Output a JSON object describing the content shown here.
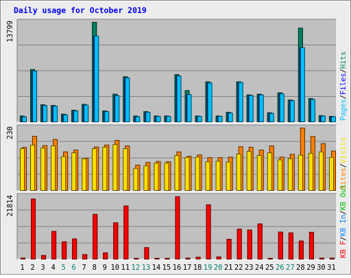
{
  "title": "Daily usage for October 2019",
  "colors": {
    "background": "#ececec",
    "plot_bg": "#c0c0c0",
    "title": "#0000ee",
    "pages": "#00c0ff",
    "files": "#0000ff",
    "hits": "#007f5f",
    "visits": "#ffe000",
    "sites": "#ff8000",
    "kb_f": "#ff0000",
    "kb_in": "#0080ff",
    "kb_out": "#00c000",
    "weekend": "#00806f",
    "axis_text": "#000000"
  },
  "chart_data": [
    {
      "type": "bar",
      "title": "Daily usage for October 2019",
      "panel": "top",
      "y_max_label": "13799",
      "ylim": [
        0,
        13799
      ],
      "grid": true,
      "legend": [
        {
          "text": "Pages",
          "color_key": "pages"
        },
        {
          "text": "/",
          "color_key": "axis_text"
        },
        {
          "text": "Files",
          "color_key": "files"
        },
        {
          "text": "/",
          "color_key": "axis_text"
        },
        {
          "text": "Hits",
          "color_key": "hits"
        }
      ],
      "categories": [
        "1",
        "2",
        "3",
        "4",
        "5",
        "6",
        "7",
        "8",
        "9",
        "10",
        "11",
        "12",
        "13",
        "14",
        "15",
        "16",
        "17",
        "18",
        "19",
        "20",
        "21",
        "22",
        "23",
        "24",
        "25",
        "26",
        "27",
        "28",
        "29",
        "30",
        "31"
      ],
      "series": [
        {
          "name": "Hits",
          "color_key": "hits",
          "values": [
            900,
            7300,
            2450,
            2350,
            1150,
            1700,
            2500,
            13799,
            1600,
            3900,
            6300,
            900,
            1500,
            900,
            900,
            6600,
            4400,
            900,
            5600,
            900,
            1400,
            5600,
            3800,
            3900,
            1350,
            4100,
            3100,
            13000,
            3300,
            950,
            850
          ]
        },
        {
          "name": "Files",
          "color_key": "files",
          "values": [
            800,
            7100,
            2350,
            2250,
            1050,
            1600,
            2400,
            11900,
            1500,
            3700,
            6150,
            800,
            1400,
            850,
            850,
            6400,
            3850,
            850,
            5450,
            850,
            1300,
            5500,
            3700,
            3800,
            1250,
            3950,
            3000,
            10300,
            3150,
            900,
            800
          ]
        },
        {
          "name": "Pages",
          "color_key": "pages",
          "values": [
            800,
            7100,
            2350,
            2250,
            1050,
            1600,
            2400,
            11900,
            1500,
            3700,
            6150,
            800,
            1400,
            850,
            850,
            6400,
            3850,
            850,
            5450,
            850,
            1300,
            5500,
            3700,
            3800,
            1250,
            3950,
            3000,
            10300,
            3150,
            900,
            800
          ]
        }
      ]
    },
    {
      "type": "bar",
      "panel": "middle",
      "y_max_label": "230",
      "ylim": [
        0,
        230
      ],
      "grid": true,
      "legend": [
        {
          "text": "Sites",
          "color_key": "sites"
        },
        {
          "text": "/",
          "color_key": "axis_text"
        },
        {
          "text": "Visits",
          "color_key": "visits"
        }
      ],
      "categories": [
        "1",
        "2",
        "3",
        "4",
        "5",
        "6",
        "7",
        "8",
        "9",
        "10",
        "11",
        "12",
        "13",
        "14",
        "15",
        "16",
        "17",
        "18",
        "19",
        "20",
        "21",
        "22",
        "23",
        "24",
        "25",
        "26",
        "27",
        "28",
        "29",
        "30",
        "31"
      ],
      "series": [
        {
          "name": "Visits",
          "color_key": "visits",
          "values": [
            155,
            168,
            157,
            165,
            126,
            140,
            118,
            155,
            160,
            170,
            155,
            83,
            92,
            102,
            102,
            130,
            123,
            124,
            107,
            109,
            106,
            135,
            145,
            130,
            140,
            114,
            118,
            131,
            138,
            143,
            123
          ]
        },
        {
          "name": "Sites",
          "color_key": "sites",
          "values": [
            159,
            200,
            166,
            188,
            143,
            150,
            120,
            161,
            168,
            185,
            165,
            95,
            105,
            108,
            107,
            143,
            127,
            132,
            122,
            122,
            124,
            162,
            160,
            150,
            165,
            124,
            134,
            230,
            199,
            173,
            146
          ]
        }
      ]
    },
    {
      "type": "bar",
      "panel": "bottom",
      "y_max_label": "21814",
      "ylim": [
        0,
        21814
      ],
      "grid": true,
      "legend": [
        {
          "text": "KB F",
          "color_key": "kb_f"
        },
        {
          "text": "/",
          "color_key": "axis_text"
        },
        {
          "text": "KB In",
          "color_key": "kb_in"
        },
        {
          "text": "/",
          "color_key": "axis_text"
        },
        {
          "text": "KB Out",
          "color_key": "kb_out"
        }
      ],
      "categories": [
        "1",
        "2",
        "3",
        "4",
        "5",
        "6",
        "7",
        "8",
        "9",
        "10",
        "11",
        "12",
        "13",
        "14",
        "15",
        "16",
        "17",
        "18",
        "19",
        "20",
        "21",
        "22",
        "23",
        "24",
        "25",
        "26",
        "27",
        "28",
        "29",
        "30",
        "31"
      ],
      "series": [
        {
          "name": "KB F",
          "color_key": "kb_f",
          "values": [
            600,
            21000,
            1500,
            9800,
            6200,
            7200,
            1800,
            15700,
            2400,
            12800,
            18600,
            500,
            4200,
            500,
            500,
            21814,
            600,
            900,
            19000,
            1000,
            7100,
            10600,
            10300,
            12400,
            500,
            9600,
            9300,
            6500,
            9500,
            600,
            600
          ]
        }
      ],
      "weekend_days": [
        "5",
        "6",
        "12",
        "13",
        "19",
        "20",
        "26",
        "27"
      ],
      "x_labels": [
        "1",
        "2",
        "3",
        "4",
        "5",
        "6",
        "7",
        "8",
        "9",
        "10",
        "11",
        "12",
        "13",
        "14",
        "15",
        "16",
        "17",
        "18",
        "19",
        "20",
        "21",
        "22",
        "23",
        "24",
        "25",
        "26",
        "27",
        "28",
        "29",
        "30",
        "31"
      ]
    }
  ]
}
